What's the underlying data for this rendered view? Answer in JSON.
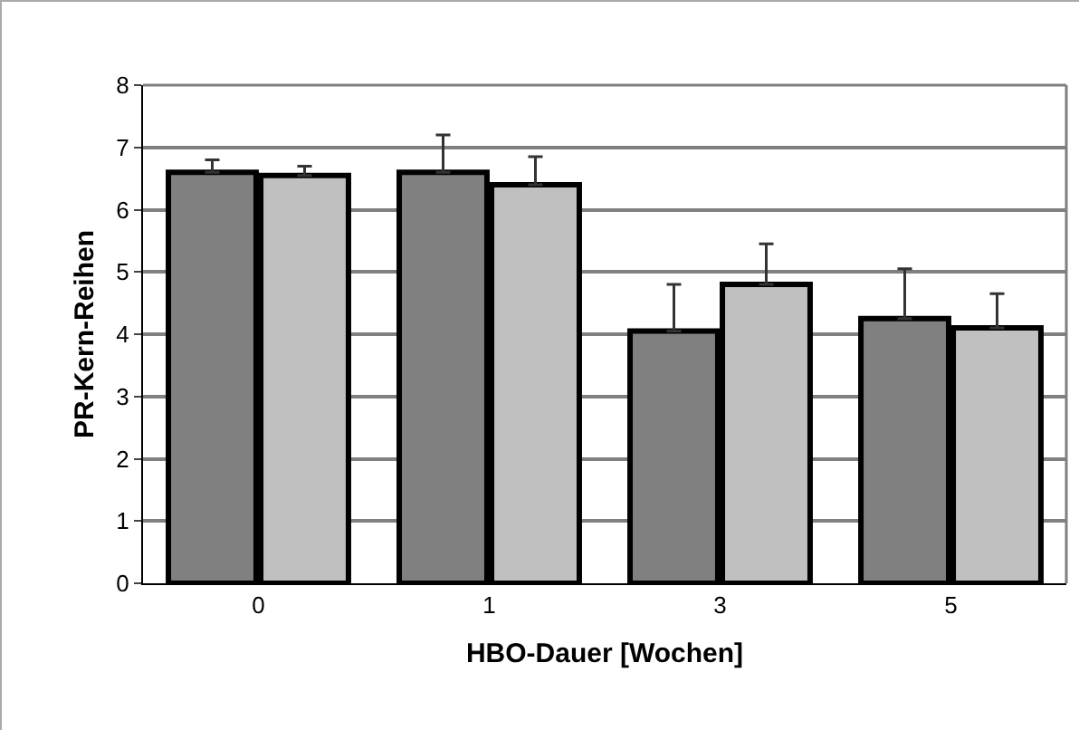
{
  "chart_data": {
    "type": "bar",
    "xlabel": "HBO-Dauer [Wochen]",
    "ylabel": "PR-Kern-Reihen",
    "categories": [
      "0",
      "1",
      "3",
      "5"
    ],
    "series": [
      {
        "color": "#808080",
        "values": [
          6.6,
          6.6,
          4.05,
          4.25
        ],
        "errors": [
          [
            6.6,
            6.8
          ],
          [
            6.6,
            7.2
          ],
          [
            4.05,
            4.8
          ],
          [
            4.25,
            5.05
          ]
        ]
      },
      {
        "color": "#c0c0c0",
        "values": [
          6.55,
          6.4,
          4.8,
          4.1
        ],
        "errors": [
          [
            6.55,
            6.7
          ],
          [
            6.4,
            6.85
          ],
          [
            4.8,
            5.45
          ],
          [
            4.1,
            4.65
          ]
        ]
      }
    ],
    "ylim": [
      0,
      8
    ],
    "yticks": [
      0,
      1,
      2,
      3,
      4,
      5,
      6,
      7,
      8
    ],
    "grid": "y"
  }
}
